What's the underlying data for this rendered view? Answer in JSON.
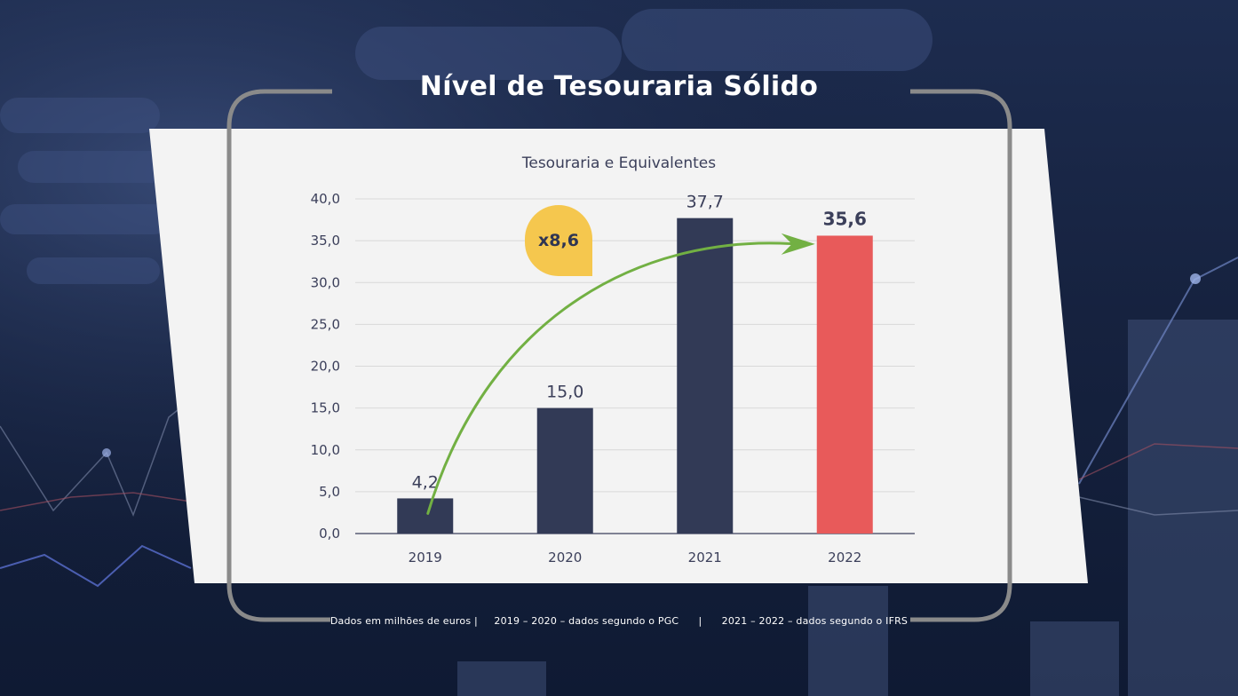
{
  "page": {
    "title": "Nível de Tesouraria Sólido",
    "footnote": {
      "part1": "Dados em milhões de euros |",
      "part2": "2019 – 2020 – dados segundo o PGC",
      "separator": "|",
      "part3": "2021 – 2022 – dados segundo o IFRS"
    },
    "badge": "x8,6"
  },
  "colors": {
    "bar_default": "#323a56",
    "bar_highlight": "#e85a5a",
    "arrow": "#72b043",
    "badge": "#f5c74e",
    "panel": "#f3f3f3",
    "frame": "#8a8a8a"
  },
  "chart_data": {
    "type": "bar",
    "title": "Tesouraria e Equivalentes",
    "categories": [
      "2019",
      "2020",
      "2021",
      "2022"
    ],
    "values": [
      4.2,
      15.0,
      37.7,
      35.6
    ],
    "value_labels": [
      "4,2",
      "15,0",
      "37,7",
      "35,6"
    ],
    "highlight_index": 3,
    "ylim": [
      0,
      40
    ],
    "yticks": [
      0,
      5,
      10,
      15,
      20,
      25,
      30,
      35,
      40
    ],
    "ytick_labels": [
      "0,0",
      "5,0",
      "10,0",
      "15,0",
      "20,0",
      "25,0",
      "30,0",
      "35,0",
      "40,0"
    ],
    "xlabel": "",
    "ylabel": "",
    "grid": true,
    "legend": "none",
    "annotation": {
      "text": "x8,6",
      "from_category": "2019",
      "to_category": "2022"
    }
  }
}
